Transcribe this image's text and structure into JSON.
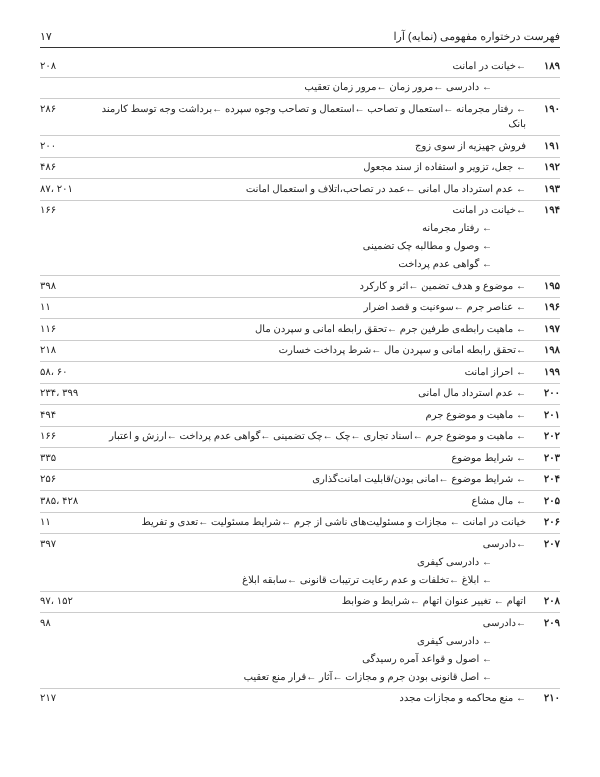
{
  "header": {
    "title": "فهرست درختواره مفهومی (نمایه) آرا",
    "page": "۱۷"
  },
  "footer_page": "۲۱۷",
  "rows": [
    {
      "idx": "۱۸۹",
      "txt": "←خیانت در امانت",
      "page": "۲۰۸",
      "border": true
    },
    {
      "idx": "",
      "txt": "← دادرسی ←مرور زمان ←مرور زمان تعقیب",
      "page": "",
      "border": true,
      "indent": true
    },
    {
      "idx": "۱۹۰",
      "txt": "← رفتار مجرمانه ←استعمال و تصاحب ←استعمال و تصاحب وجوه سپرده ←برداشت وجه توسط کارمند بانک",
      "page": "۲۸۶",
      "border": true
    },
    {
      "idx": "۱۹۱",
      "txt": "فروش جهیزیه از سوی زوج",
      "page": "۲۰۰",
      "border": true
    },
    {
      "idx": "۱۹۲",
      "txt": "← جعل، تزویر و استفاده از سند مجعول",
      "page": "۴۸۶",
      "border": true
    },
    {
      "idx": "۱۹۳",
      "txt": "← عدم استرداد مال امانی ←عمد در تصاحب،اتلاف و استعمال امانت",
      "page": "۸۷، ۲۰۱",
      "border": true
    },
    {
      "idx": "۱۹۴",
      "txt": "←خیانت در امانت",
      "page": "۱۶۶",
      "border": false
    },
    {
      "idx": "",
      "txt": "← رفتار مجرمانه",
      "page": "",
      "border": false,
      "indent": true
    },
    {
      "idx": "",
      "txt": "← وصول و مطالبه چک تضمینی",
      "page": "",
      "border": false,
      "indent": true
    },
    {
      "idx": "",
      "txt": "← گواهی عدم پرداخت",
      "page": "",
      "border": true,
      "indent": true
    },
    {
      "idx": "۱۹۵",
      "txt": "← موضوع و هدف تضمین ←اثر و کارکرد",
      "page": "۳۹۸",
      "border": true
    },
    {
      "idx": "۱۹۶",
      "txt": "← عناصر جرم ←سوءنیت و قصد اضرار",
      "page": "۱۱",
      "border": true
    },
    {
      "idx": "۱۹۷",
      "txt": "← ماهیت رابطه‌ی طرفین جرم ←تحقق رابطه امانی و سپردن مال",
      "page": "۱۱۶",
      "border": true
    },
    {
      "idx": "۱۹۸",
      "txt": "←تحقق رابطه امانی و سپردن مال ←شرط پرداخت خسارت",
      "page": "۲۱۸",
      "border": true
    },
    {
      "idx": "۱۹۹",
      "txt": "← احراز امانت",
      "page": "۵۸، ۶۰",
      "border": true
    },
    {
      "idx": "۲۰۰",
      "txt": "← عدم استرداد مال امانی",
      "page": "۲۳۴، ۳۹۹",
      "border": true
    },
    {
      "idx": "۲۰۱",
      "txt": "← ماهیت و موضوع جرم",
      "page": "۴۹۴",
      "border": true
    },
    {
      "idx": "۲۰۲",
      "txt": "← ماهیت و موضوع جرم ←اسناد تجاری ←چک ←چک تضمینی ←گواهی عدم پرداخت ←ارزش و اعتبار",
      "page": "۱۶۶",
      "border": true
    },
    {
      "idx": "۲۰۳",
      "txt": "← شرایط موضوع",
      "page": "۳۳۵",
      "border": true
    },
    {
      "idx": "۲۰۴",
      "txt": "← شرایط موضوع ←امانی بودن/قابلیت امانت‌گذاری",
      "page": "۲۵۶",
      "border": true
    },
    {
      "idx": "۲۰۵",
      "txt": "← مال مشاع",
      "page": "۳۸۵، ۴۲۸",
      "border": true
    },
    {
      "idx": "۲۰۶",
      "txt": "خیانت در امانت ← مجازات و مسئولیت‌های ناشی از جرم ←شرایط مسئولیت ←تعدی و تفریط",
      "page": "۱۱",
      "border": true
    },
    {
      "idx": "۲۰۷",
      "txt": "←دادرسی",
      "page": "۳۹۷",
      "border": false
    },
    {
      "idx": "",
      "txt": "← دادرسی کیفری",
      "page": "",
      "border": false,
      "indent": true
    },
    {
      "idx": "",
      "txt": "← ابلاغ ←تخلفات و عدم رعایت ترتیبات قانونی ←سابقه ابلاغ",
      "page": "",
      "border": true,
      "indent": true
    },
    {
      "idx": "۲۰۸",
      "txt": "اتهام ← تغییر عنوان اتهام ←شرایط و ضوابط",
      "page": "۹۷، ۱۵۲",
      "border": true
    },
    {
      "idx": "۲۰۹",
      "txt": "←دادرسی",
      "page": "۹۸",
      "border": false
    },
    {
      "idx": "",
      "txt": "← دادرسی کیفری",
      "page": "",
      "border": false,
      "indent": true
    },
    {
      "idx": "",
      "txt": "← اصول و قواعد آمره رسیدگی",
      "page": "",
      "border": false,
      "indent": true
    },
    {
      "idx": "",
      "txt": "← اصل قانونی بودن جرم و مجازات ←آثار ←قرار منع تعقیب",
      "page": "",
      "border": true,
      "indent": true
    },
    {
      "idx": "۲۱۰",
      "txt": "← منع محاکمه و مجازات مجدد",
      "page": "۲۱۷",
      "border": false
    }
  ]
}
